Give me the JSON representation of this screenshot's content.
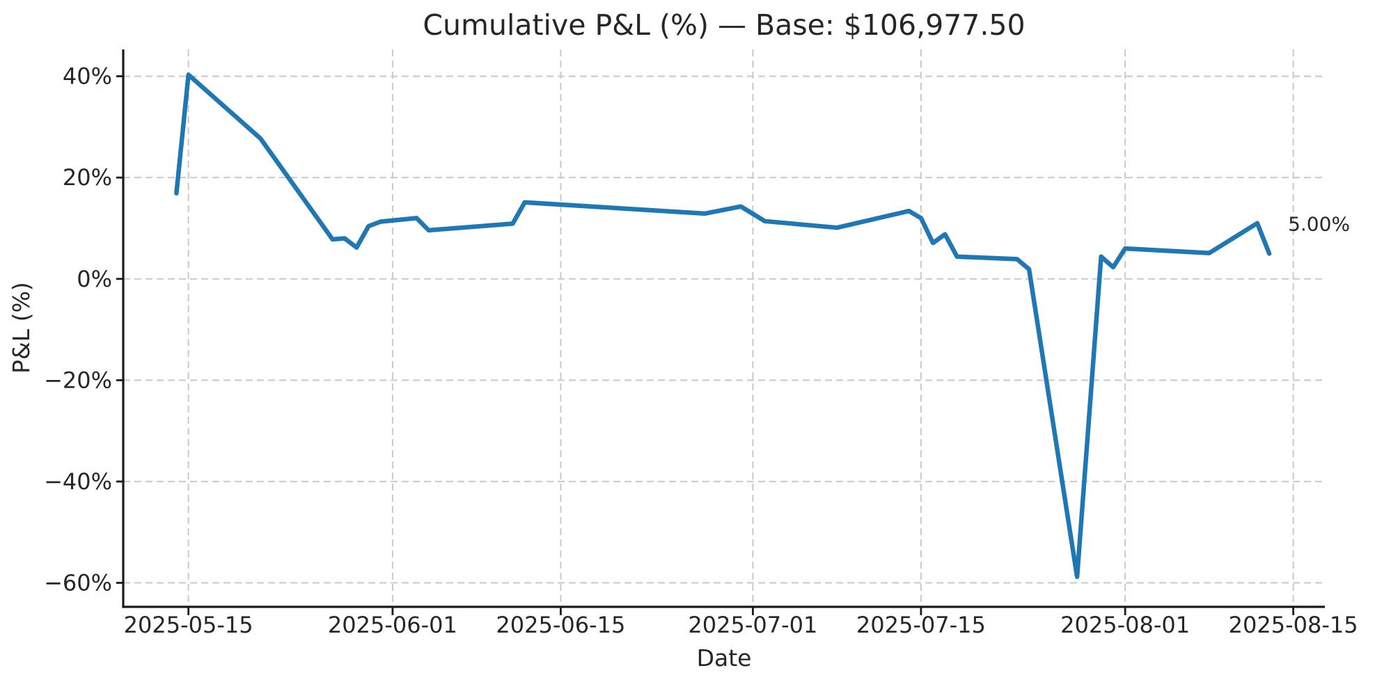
{
  "figure": {
    "background": "#ffffff"
  },
  "chart_data": {
    "type": "line",
    "title": "Cumulative P&L (%) — Base: $106,977.50",
    "xlabel": "Date",
    "ylabel": "P&L (%)",
    "legend": null,
    "grid": true,
    "x_start_date": "2025-05-14",
    "xlim_days": [
      -4.43,
      95.63
    ],
    "ylim": [
      -64.6,
      45.3
    ],
    "line_color": "#1f77b4",
    "grid_color": "#c9c9c9",
    "axis_color": "#1a1a1a",
    "text_color": "#262626",
    "x_ticks": [
      {
        "date": "2025-05-15",
        "label": "2025-05-15"
      },
      {
        "date": "2025-06-01",
        "label": "2025-06-01"
      },
      {
        "date": "2025-06-15",
        "label": "2025-06-15"
      },
      {
        "date": "2025-07-01",
        "label": "2025-07-01"
      },
      {
        "date": "2025-07-15",
        "label": "2025-07-15"
      },
      {
        "date": "2025-08-01",
        "label": "2025-08-01"
      },
      {
        "date": "2025-08-15",
        "label": "2025-08-15"
      }
    ],
    "y_ticks": [
      {
        "value": 40,
        "label": "40%"
      },
      {
        "value": 20,
        "label": "20%"
      },
      {
        "value": 0,
        "label": "0%"
      },
      {
        "value": -20,
        "label": "−20%"
      },
      {
        "value": -40,
        "label": "−40%"
      },
      {
        "value": -60,
        "label": "−60%"
      }
    ],
    "series": [
      {
        "name": "Cumulative P&L (%)",
        "points": [
          {
            "date": "2025-05-14",
            "value": 16.9
          },
          {
            "date": "2025-05-15",
            "value": 40.3
          },
          {
            "date": "2025-05-21",
            "value": 27.7
          },
          {
            "date": "2025-05-27",
            "value": 7.8
          },
          {
            "date": "2025-05-28",
            "value": 8.0
          },
          {
            "date": "2025-05-29",
            "value": 6.2
          },
          {
            "date": "2025-05-30",
            "value": 10.4
          },
          {
            "date": "2025-05-31",
            "value": 11.3
          },
          {
            "date": "2025-06-03",
            "value": 12.0
          },
          {
            "date": "2025-06-04",
            "value": 9.6
          },
          {
            "date": "2025-06-11",
            "value": 10.9
          },
          {
            "date": "2025-06-12",
            "value": 15.1
          },
          {
            "date": "2025-06-27",
            "value": 12.9
          },
          {
            "date": "2025-06-30",
            "value": 14.3
          },
          {
            "date": "2025-07-02",
            "value": 11.4
          },
          {
            "date": "2025-07-08",
            "value": 10.1
          },
          {
            "date": "2025-07-14",
            "value": 13.4
          },
          {
            "date": "2025-07-15",
            "value": 12.0
          },
          {
            "date": "2025-07-16",
            "value": 7.1
          },
          {
            "date": "2025-07-17",
            "value": 8.8
          },
          {
            "date": "2025-07-18",
            "value": 4.4
          },
          {
            "date": "2025-07-23",
            "value": 3.9
          },
          {
            "date": "2025-07-24",
            "value": 1.9
          },
          {
            "date": "2025-07-28",
            "value": -58.8
          },
          {
            "date": "2025-07-30",
            "value": 4.4
          },
          {
            "date": "2025-07-31",
            "value": 2.3
          },
          {
            "date": "2025-08-01",
            "value": 6.0
          },
          {
            "date": "2025-08-08",
            "value": 5.1
          },
          {
            "date": "2025-08-12",
            "value": 11.0
          },
          {
            "date": "2025-08-13",
            "value": 5.0
          }
        ]
      }
    ],
    "annotation": {
      "text": "5.00%",
      "attach": "last-point"
    }
  }
}
